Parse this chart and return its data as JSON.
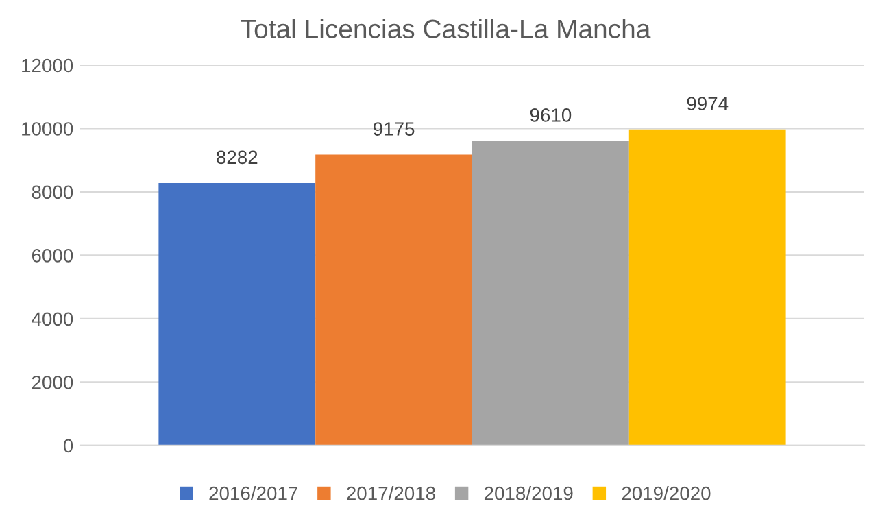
{
  "chart_data": {
    "type": "bar",
    "title": "Total Licencias Castilla-La Mancha",
    "categories": [
      null
    ],
    "series": [
      {
        "name": "2016/2017",
        "color": "#4472c4",
        "values": [
          8282
        ]
      },
      {
        "name": "2017/2018",
        "color": "#ed7d31",
        "values": [
          9175
        ]
      },
      {
        "name": "2018/2019",
        "color": "#a5a5a5",
        "values": [
          9610
        ]
      },
      {
        "name": "2019/2020",
        "color": "#ffc000",
        "values": [
          9974
        ]
      }
    ],
    "ylim": [
      0,
      12000
    ],
    "yticks": [
      0,
      2000,
      4000,
      6000,
      8000,
      10000,
      12000
    ],
    "grid": "y",
    "legend": "bottom",
    "data_labels": true
  }
}
